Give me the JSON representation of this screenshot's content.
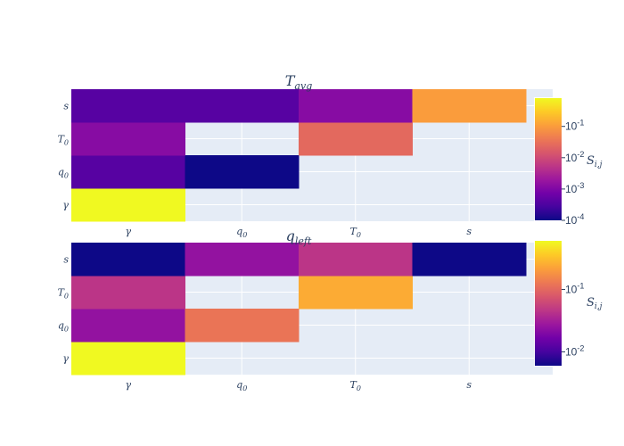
{
  "chart_data": [
    {
      "type": "heatmap",
      "title": "T_avg",
      "title_main": "T",
      "title_sub": "avg",
      "x_categories": [
        "γ",
        "q0",
        "T0",
        "s"
      ],
      "y_categories": [
        "γ",
        "q0",
        "T0",
        "s"
      ],
      "color_scale": "plasma",
      "color_scale_type": "log",
      "colorbar_title": "S_i,j",
      "colorbar_ticks": [
        "10^-4",
        "10^-3",
        "10^-2",
        "10^-1"
      ],
      "zrange": [
        0.0001,
        0.8
      ],
      "grid": true,
      "values": [
        [
          0.8,
          null,
          null,
          null
        ],
        [
          0.0004,
          0.0001,
          null,
          null
        ],
        [
          0.0012,
          null,
          0.025,
          null
        ],
        [
          0.0004,
          0.0004,
          0.0012,
          0.1
        ]
      ],
      "values_note": "rows follow y_categories (γ, q0, T0, s); columns follow x_categories; null = empty cell"
    },
    {
      "type": "heatmap",
      "title": "q_left",
      "title_main": "q",
      "title_sub": "left",
      "x_categories": [
        "γ",
        "q0",
        "T0",
        "s"
      ],
      "y_categories": [
        "γ",
        "q0",
        "T0",
        "s"
      ],
      "color_scale": "plasma",
      "color_scale_type": "log",
      "colorbar_title": "S_i,j",
      "colorbar_ticks": [
        "10^-2",
        "10^-1"
      ],
      "zrange": [
        0.006,
        0.6
      ],
      "grid": true,
      "values": [
        [
          0.6,
          null,
          null,
          null
        ],
        [
          0.025,
          0.12,
          null,
          null
        ],
        [
          0.045,
          null,
          0.25,
          null
        ],
        [
          0.006,
          0.025,
          0.045,
          0.006
        ]
      ]
    }
  ]
}
